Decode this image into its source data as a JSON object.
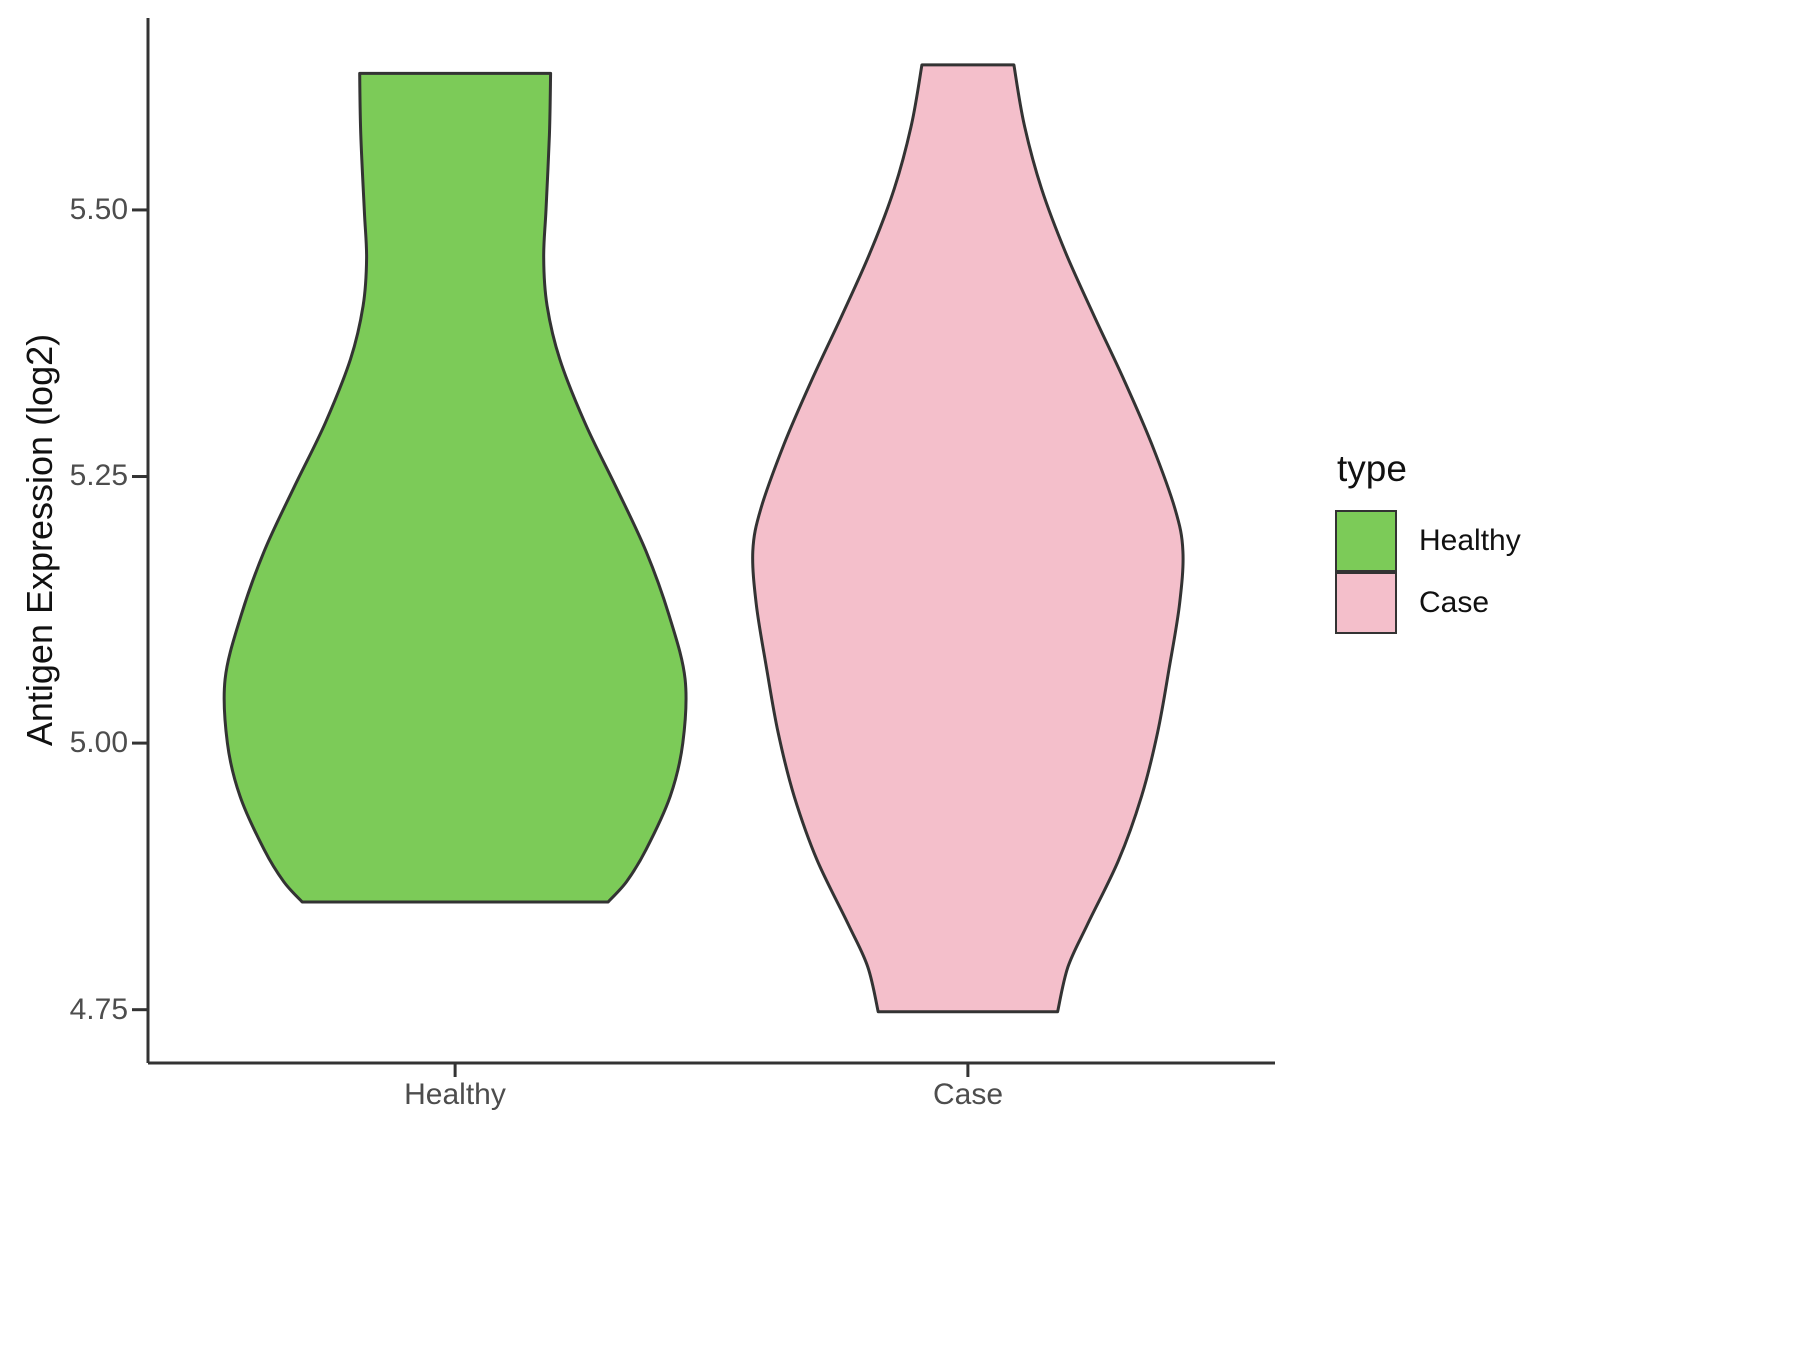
{
  "chart_data": {
    "type": "violin",
    "title": "",
    "xlabel": "",
    "ylabel": "Antigen Expression (log2)",
    "ylim": [
      4.7,
      5.68
    ],
    "grid": false,
    "yticks": [
      {
        "v": 5.5,
        "label": "5.50"
      },
      {
        "v": 5.25,
        "label": "5.25"
      },
      {
        "v": 5.0,
        "label": "5.00"
      },
      {
        "v": 4.75,
        "label": "4.75"
      }
    ],
    "categories": [
      "Healthy",
      "Case"
    ],
    "legend": {
      "title": "type",
      "position": "right",
      "entries": [
        {
          "label": "Healthy",
          "color": "#7CCB58"
        },
        {
          "label": "Case",
          "color": "#F4BFCB"
        }
      ]
    },
    "styles": {
      "outline_color": "#333333",
      "axis_color": "#333333",
      "tick_label_color": "#4d4d4d"
    },
    "series": [
      {
        "name": "Healthy",
        "fill": "#7CCB58",
        "profile": [
          {
            "v": 5.628,
            "w": 0.415
          },
          {
            "v": 5.57,
            "w": 0.41
          },
          {
            "v": 5.5,
            "w": 0.395
          },
          {
            "v": 5.455,
            "w": 0.385
          },
          {
            "v": 5.41,
            "w": 0.4
          },
          {
            "v": 5.36,
            "w": 0.455
          },
          {
            "v": 5.3,
            "w": 0.565
          },
          {
            "v": 5.24,
            "w": 0.7
          },
          {
            "v": 5.18,
            "w": 0.83
          },
          {
            "v": 5.12,
            "w": 0.93
          },
          {
            "v": 5.06,
            "w": 1.0
          },
          {
            "v": 5.0,
            "w": 0.99
          },
          {
            "v": 4.95,
            "w": 0.935
          },
          {
            "v": 4.9,
            "w": 0.83
          },
          {
            "v": 4.87,
            "w": 0.745
          },
          {
            "v": 4.851,
            "w": 0.665
          }
        ]
      },
      {
        "name": "Case",
        "fill": "#F4BFCB",
        "profile": [
          {
            "v": 5.636,
            "w": 0.2
          },
          {
            "v": 5.58,
            "w": 0.245
          },
          {
            "v": 5.52,
            "w": 0.32
          },
          {
            "v": 5.46,
            "w": 0.425
          },
          {
            "v": 5.4,
            "w": 0.55
          },
          {
            "v": 5.34,
            "w": 0.68
          },
          {
            "v": 5.28,
            "w": 0.8
          },
          {
            "v": 5.22,
            "w": 0.9
          },
          {
            "v": 5.18,
            "w": 0.935
          },
          {
            "v": 5.13,
            "w": 0.92
          },
          {
            "v": 5.07,
            "w": 0.875
          },
          {
            "v": 5.01,
            "w": 0.825
          },
          {
            "v": 4.95,
            "w": 0.755
          },
          {
            "v": 4.89,
            "w": 0.655
          },
          {
            "v": 4.83,
            "w": 0.52
          },
          {
            "v": 4.79,
            "w": 0.435
          },
          {
            "v": 4.748,
            "w": 0.39
          }
        ]
      }
    ]
  }
}
